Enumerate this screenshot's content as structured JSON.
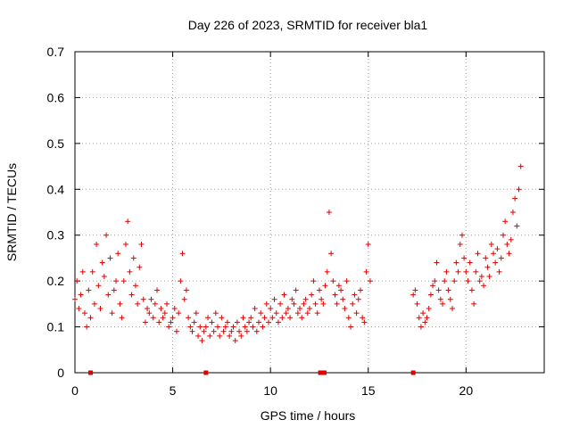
{
  "chart_data": {
    "type": "scatter",
    "title": "Day 226 of 2023, SRMTID for receiver bla1",
    "xlabel": "GPS time / hours",
    "ylabel": "SRMTID / TECUs",
    "xlim": [
      0,
      24
    ],
    "ylim": [
      0,
      0.7
    ],
    "x_ticks": [
      0,
      5,
      10,
      15,
      20
    ],
    "x_tick_labels": [
      "0",
      "5",
      "10",
      "15",
      "20"
    ],
    "y_ticks": [
      0,
      0.1,
      0.2,
      0.3,
      0.4,
      0.5,
      0.6,
      0.7
    ],
    "y_tick_labels": [
      "0",
      "0.1",
      "0.2",
      "0.3",
      "0.4",
      "0.5",
      "0.6",
      "0.7"
    ],
    "grid": true,
    "marker": "+",
    "color": "#e00000",
    "series": [
      {
        "name": "SRMTID",
        "x": [
          0.0,
          0.1,
          0.2,
          0.3,
          0.4,
          0.5,
          0.6,
          0.7,
          0.8,
          0.9,
          1.0,
          1.1,
          1.2,
          1.3,
          1.4,
          1.5,
          1.6,
          1.7,
          1.8,
          1.9,
          2.0,
          2.1,
          2.2,
          2.3,
          2.4,
          2.5,
          2.6,
          2.7,
          2.8,
          2.9,
          3.0,
          3.1,
          3.2,
          3.3,
          3.4,
          3.5,
          3.6,
          3.7,
          3.8,
          3.9,
          4.0,
          4.1,
          4.2,
          4.3,
          4.4,
          4.5,
          4.6,
          4.7,
          4.8,
          4.9,
          5.0,
          5.1,
          5.2,
          5.3,
          5.4,
          5.5,
          5.6,
          5.7,
          5.8,
          5.9,
          6.0,
          6.1,
          6.2,
          6.3,
          6.4,
          6.5,
          6.6,
          6.7,
          6.8,
          6.9,
          7.0,
          7.1,
          7.2,
          7.3,
          7.4,
          7.5,
          7.6,
          7.7,
          7.8,
          7.9,
          8.0,
          8.1,
          8.2,
          8.3,
          8.4,
          8.5,
          8.6,
          8.7,
          8.8,
          8.9,
          9.0,
          9.1,
          9.2,
          9.3,
          9.4,
          9.5,
          9.6,
          9.7,
          9.8,
          9.9,
          10.0,
          10.1,
          10.2,
          10.3,
          10.4,
          10.5,
          10.6,
          10.7,
          10.8,
          10.9,
          11.0,
          11.1,
          11.2,
          11.3,
          11.4,
          11.5,
          11.6,
          11.7,
          11.8,
          11.9,
          12.0,
          12.1,
          12.2,
          12.3,
          12.4,
          12.5,
          12.6,
          12.7,
          12.8,
          12.9,
          13.0,
          13.1,
          13.2,
          13.3,
          13.4,
          13.5,
          13.6,
          13.7,
          13.8,
          13.9,
          14.0,
          14.1,
          14.2,
          14.3,
          14.4,
          14.5,
          14.6,
          14.7,
          14.8,
          14.9,
          15.0,
          15.1,
          17.3,
          17.4,
          17.5,
          17.6,
          17.7,
          17.8,
          17.9,
          18.0,
          18.1,
          18.2,
          18.3,
          18.4,
          18.5,
          18.6,
          18.7,
          18.8,
          18.9,
          19.0,
          19.1,
          19.2,
          19.3,
          19.4,
          19.5,
          19.6,
          19.7,
          19.8,
          19.9,
          20.0,
          20.1,
          20.2,
          20.3,
          20.4,
          20.5,
          20.6,
          20.7,
          20.8,
          20.9,
          21.0,
          21.1,
          21.2,
          21.3,
          21.4,
          21.5,
          21.6,
          21.7,
          21.8,
          21.9,
          22.0,
          22.1,
          22.2,
          22.3,
          22.4,
          22.5,
          22.6,
          22.7,
          22.8
        ],
        "y": [
          0.16,
          0.2,
          0.14,
          0.17,
          0.22,
          0.13,
          0.1,
          0.18,
          0.12,
          0.22,
          0.15,
          0.28,
          0.19,
          0.14,
          0.24,
          0.21,
          0.3,
          0.17,
          0.25,
          0.13,
          0.18,
          0.2,
          0.26,
          0.15,
          0.12,
          0.2,
          0.28,
          0.33,
          0.22,
          0.17,
          0.25,
          0.19,
          0.15,
          0.23,
          0.28,
          0.16,
          0.11,
          0.14,
          0.13,
          0.16,
          0.12,
          0.15,
          0.18,
          0.11,
          0.14,
          0.12,
          0.13,
          0.15,
          0.1,
          0.11,
          0.12,
          0.14,
          0.09,
          0.13,
          0.2,
          0.26,
          0.16,
          0.18,
          0.12,
          0.1,
          0.09,
          0.11,
          0.13,
          0.08,
          0.1,
          0.07,
          0.09,
          0.1,
          0.12,
          0.08,
          0.11,
          0.09,
          0.13,
          0.1,
          0.08,
          0.12,
          0.09,
          0.1,
          0.11,
          0.08,
          0.09,
          0.1,
          0.07,
          0.11,
          0.09,
          0.08,
          0.12,
          0.1,
          0.09,
          0.11,
          0.12,
          0.1,
          0.14,
          0.09,
          0.11,
          0.13,
          0.1,
          0.12,
          0.15,
          0.11,
          0.14,
          0.12,
          0.16,
          0.13,
          0.11,
          0.15,
          0.12,
          0.17,
          0.13,
          0.14,
          0.12,
          0.16,
          0.15,
          0.18,
          0.13,
          0.14,
          0.12,
          0.15,
          0.16,
          0.13,
          0.14,
          0.17,
          0.2,
          0.15,
          0.13,
          0.18,
          0.16,
          0.15,
          0.19,
          0.22,
          0.35,
          0.26,
          0.2,
          0.17,
          0.15,
          0.19,
          0.18,
          0.16,
          0.14,
          0.2,
          0.12,
          0.1,
          0.15,
          0.17,
          0.13,
          0.16,
          0.18,
          0.12,
          0.11,
          0.22,
          0.28,
          0.2,
          0.17,
          0.18,
          0.15,
          0.12,
          0.1,
          0.13,
          0.11,
          0.12,
          0.14,
          0.17,
          0.19,
          0.2,
          0.24,
          0.18,
          0.16,
          0.15,
          0.2,
          0.22,
          0.18,
          0.16,
          0.14,
          0.2,
          0.24,
          0.22,
          0.28,
          0.3,
          0.25,
          0.22,
          0.2,
          0.24,
          0.18,
          0.15,
          0.22,
          0.26,
          0.2,
          0.21,
          0.19,
          0.25,
          0.23,
          0.21,
          0.28,
          0.26,
          0.24,
          0.27,
          0.22,
          0.25,
          0.3,
          0.33,
          0.28,
          0.26,
          0.29,
          0.35,
          0.38,
          0.32,
          0.4,
          0.45
        ]
      }
    ],
    "gap_markers_x": [
      0.8,
      6.7,
      12.55,
      12.75,
      17.3
    ]
  }
}
